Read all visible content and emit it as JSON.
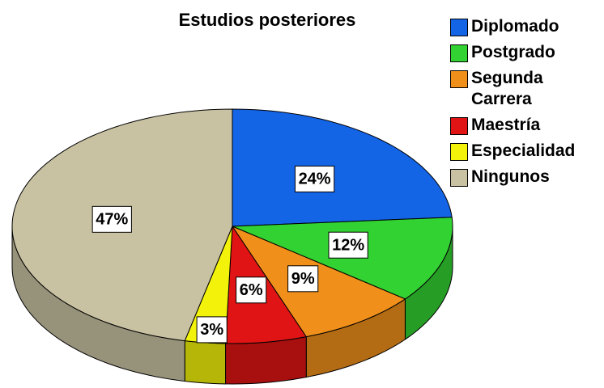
{
  "chart_data": {
    "type": "pie",
    "title": "Estudios posteriores",
    "categories": [
      "Diplomado",
      "Postgrado",
      "Segunda Carrera",
      "Maestría",
      "Especialidad",
      "Ningunos"
    ],
    "values": [
      24,
      12,
      9,
      6,
      3,
      47
    ],
    "value_labels": [
      "24%",
      "12%",
      "9%",
      "6%",
      "3%",
      "47%"
    ],
    "colors": [
      "#1464e6",
      "#32d232",
      "#f0901a",
      "#e01414",
      "#f2f20a",
      "#c9c2a2"
    ],
    "legend": "right"
  }
}
